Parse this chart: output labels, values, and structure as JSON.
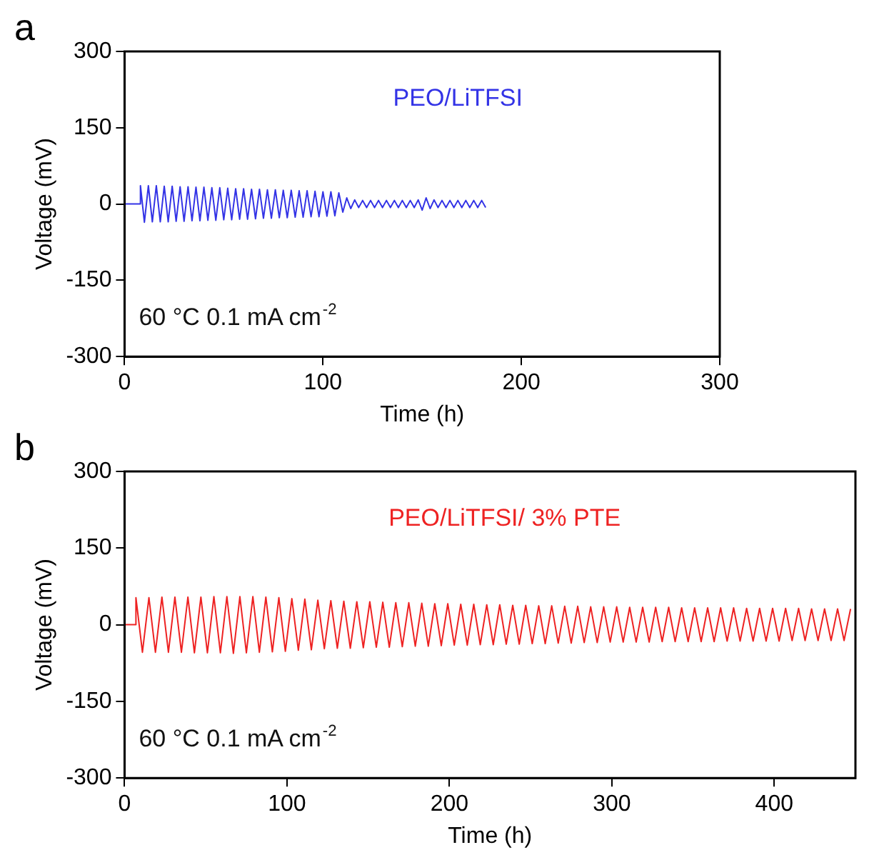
{
  "chart_data": [
    {
      "type": "line",
      "title": "a",
      "xlabel": "Time (h)",
      "ylabel": "Voltage (mV)",
      "xlim": [
        0,
        300
      ],
      "xticks": [
        0,
        100,
        200,
        300
      ],
      "ylim": [
        -300,
        300
      ],
      "yticks": [
        -300,
        -150,
        0,
        150,
        300
      ],
      "grid": false,
      "legend": false,
      "marker": "none",
      "line_style": "solid",
      "annotations": [
        "60 °C 0.1 mA cm$^{-2}$"
      ],
      "series": [
        {
          "name": "PEO/LiTFSI",
          "color": "#3333e6",
          "x": [
            0,
            8,
            8,
            10,
            12,
            14,
            16,
            18,
            20,
            22,
            24,
            26,
            28,
            30,
            32,
            34,
            36,
            38,
            40,
            42,
            44,
            46,
            48,
            50,
            52,
            54,
            56,
            58,
            60,
            62,
            64,
            66,
            68,
            70,
            72,
            74,
            76,
            78,
            80,
            82,
            84,
            86,
            88,
            90,
            92,
            94,
            96,
            98,
            100,
            102,
            104,
            106,
            108,
            110,
            112,
            114,
            116,
            118,
            120,
            122,
            124,
            126,
            128,
            130,
            132,
            134,
            136,
            138,
            140,
            142,
            144,
            146,
            148,
            150,
            152,
            154,
            156,
            158,
            160,
            162,
            164,
            166,
            168,
            170,
            172,
            174,
            176,
            178,
            180,
            182
          ],
          "values": [
            0,
            0,
            36,
            -36,
            36,
            -35,
            36,
            -35,
            35,
            -35,
            35,
            -34,
            34,
            -34,
            34,
            -33,
            33,
            -33,
            33,
            -32,
            32,
            -32,
            32,
            -31,
            31,
            -31,
            30,
            -30,
            30,
            -30,
            29,
            -29,
            29,
            -28,
            28,
            -28,
            28,
            -27,
            27,
            -27,
            27,
            -26,
            26,
            -26,
            26,
            -25,
            25,
            -25,
            24,
            -24,
            24,
            -23,
            22,
            -16,
            12,
            -9,
            8,
            -7,
            7,
            -7,
            7,
            -7,
            7,
            -7,
            7,
            -7,
            7,
            -7,
            7,
            -7,
            7,
            -7,
            8,
            -12,
            12,
            -9,
            8,
            -7,
            7,
            -7,
            7,
            -7,
            7,
            -7,
            7,
            -7,
            7,
            -7,
            7,
            -7
          ]
        }
      ]
    },
    {
      "type": "line",
      "title": "b",
      "xlabel": "Time (h)",
      "ylabel": "Voltage (mV)",
      "xlim": [
        0,
        450
      ],
      "xticks": [
        0,
        100,
        200,
        300,
        400
      ],
      "ylim": [
        -300,
        300
      ],
      "yticks": [
        -300,
        -150,
        0,
        150,
        300
      ],
      "grid": false,
      "legend": false,
      "marker": "none",
      "line_style": "solid",
      "annotations": [
        "60 °C 0.1 mA cm$^{-2}$"
      ],
      "series": [
        {
          "name": "PEO/LiTFSI/ 3% PTE",
          "color": "#ee2222",
          "x": [
            0,
            7,
            7,
            11,
            15,
            19,
            23,
            27,
            31,
            35,
            39,
            43,
            47,
            51,
            55,
            59,
            63,
            67,
            71,
            75,
            79,
            83,
            87,
            91,
            95,
            99,
            103,
            107,
            111,
            115,
            119,
            123,
            127,
            131,
            135,
            139,
            143,
            147,
            151,
            155,
            159,
            163,
            167,
            171,
            175,
            179,
            183,
            187,
            191,
            195,
            199,
            203,
            207,
            211,
            215,
            219,
            223,
            227,
            231,
            235,
            239,
            243,
            247,
            251,
            255,
            259,
            263,
            267,
            271,
            275,
            279,
            283,
            287,
            291,
            295,
            299,
            303,
            307,
            311,
            315,
            319,
            323,
            327,
            331,
            335,
            339,
            343,
            347,
            351,
            355,
            359,
            363,
            367,
            371,
            375,
            379,
            383,
            387,
            391,
            395,
            399,
            403,
            407,
            411,
            415,
            419,
            423,
            427,
            431,
            435,
            439,
            443,
            447
          ],
          "values": [
            0,
            0,
            53,
            -54,
            53,
            -54,
            54,
            -54,
            54,
            -54,
            54,
            -55,
            54,
            -55,
            55,
            -55,
            55,
            -56,
            55,
            -55,
            55,
            -54,
            54,
            -53,
            53,
            -52,
            51,
            -50,
            50,
            -49,
            48,
            -47,
            47,
            -46,
            46,
            -46,
            45,
            -45,
            45,
            -44,
            44,
            -44,
            43,
            -43,
            43,
            -42,
            42,
            -42,
            41,
            -41,
            41,
            -40,
            40,
            -40,
            40,
            -39,
            39,
            -39,
            39,
            -38,
            38,
            -38,
            38,
            -37,
            37,
            -37,
            37,
            -36,
            36,
            -36,
            36,
            -35,
            35,
            -35,
            35,
            -34,
            35,
            -34,
            34,
            -34,
            34,
            -34,
            34,
            -33,
            34,
            -33,
            33,
            -33,
            33,
            -33,
            33,
            -33,
            33,
            -32,
            33,
            -32,
            32,
            -32,
            32,
            -32,
            32,
            -32,
            32,
            -31,
            32,
            -31,
            31,
            -31,
            31,
            -31,
            31,
            -31,
            31
          ]
        }
      ]
    }
  ]
}
